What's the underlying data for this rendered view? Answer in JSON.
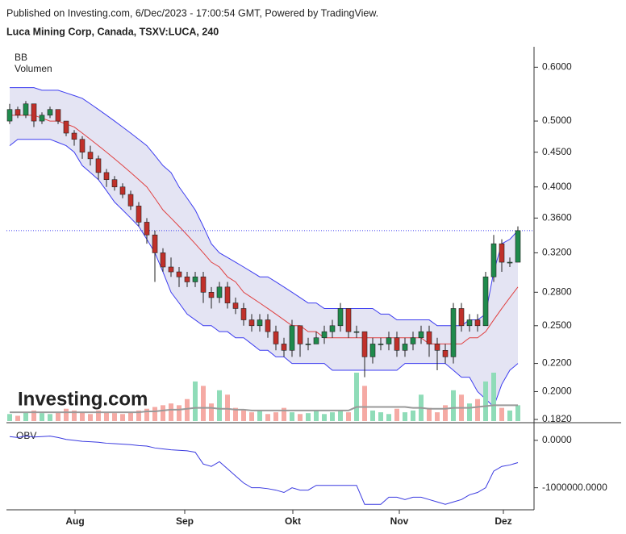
{
  "chart_data": {
    "type": "candlestick",
    "header": "Published on Investing.com, 6/Dec/2023 - 17:00:54 GMT, Powered by TradingView.",
    "title": "Luca Mining Corp, Canada, TSXV:LUCA, 240",
    "watermark": "Investing.com",
    "indicators": [
      "BB",
      "Volumen"
    ],
    "log_scale": true,
    "up_color": "#1f8a4c",
    "down_color": "#c0302a",
    "xlim": [
      -0.4,
      65
    ],
    "xticks": [
      {
        "value": 8.1,
        "label": "Aug"
      },
      {
        "value": 21.7,
        "label": "Sep"
      },
      {
        "value": 35.1,
        "label": "Okt"
      },
      {
        "value": 48.3,
        "label": "Nov"
      },
      {
        "value": 61.2,
        "label": "Dez"
      }
    ],
    "ylim": [
      0.181,
      0.643
    ],
    "yticks": [
      {
        "value": 0.6,
        "label": "0.6000"
      },
      {
        "value": 0.5,
        "label": "0.5000"
      },
      {
        "value": 0.45,
        "label": "0.4500"
      },
      {
        "value": 0.4,
        "label": "0.4000"
      },
      {
        "value": 0.36,
        "label": "0.3600"
      },
      {
        "value": 0.32,
        "label": "0.3200"
      },
      {
        "value": 0.28,
        "label": "0.2800"
      },
      {
        "value": 0.25,
        "label": "0.2500"
      },
      {
        "value": 0.22,
        "label": "0.2200"
      },
      {
        "value": 0.2,
        "label": "0.2000"
      },
      {
        "value": 0.182,
        "label": "0.1820"
      }
    ],
    "open": [
      0.5,
      0.52,
      0.51,
      0.53,
      0.5,
      0.51,
      0.52,
      0.5,
      0.48,
      0.47,
      0.45,
      0.44,
      0.42,
      0.41,
      0.4,
      0.39,
      0.375,
      0.355,
      0.34,
      0.32,
      0.305,
      0.3,
      0.295,
      0.29,
      0.295,
      0.28,
      0.275,
      0.285,
      0.27,
      0.265,
      0.255,
      0.25,
      0.255,
      0.245,
      0.235,
      0.23,
      0.25,
      0.235,
      0.235,
      0.24,
      0.245,
      0.25,
      0.265,
      0.245,
      0.245,
      0.225,
      0.235,
      0.235,
      0.24,
      0.23,
      0.235,
      0.24,
      0.245,
      0.235,
      0.23,
      0.225,
      0.265,
      0.25,
      0.255,
      0.25,
      0.295,
      0.33,
      0.31,
      0.31
    ],
    "high": [
      0.53,
      0.525,
      0.535,
      0.53,
      0.515,
      0.525,
      0.52,
      0.5,
      0.485,
      0.475,
      0.46,
      0.445,
      0.425,
      0.415,
      0.405,
      0.395,
      0.38,
      0.36,
      0.345,
      0.325,
      0.315,
      0.305,
      0.3,
      0.3,
      0.3,
      0.285,
      0.29,
      0.29,
      0.275,
      0.27,
      0.26,
      0.26,
      0.26,
      0.25,
      0.24,
      0.255,
      0.25,
      0.24,
      0.245,
      0.25,
      0.255,
      0.27,
      0.265,
      0.25,
      0.245,
      0.24,
      0.24,
      0.245,
      0.245,
      0.24,
      0.245,
      0.25,
      0.25,
      0.24,
      0.235,
      0.27,
      0.27,
      0.26,
      0.26,
      0.3,
      0.34,
      0.335,
      0.315,
      0.35
    ],
    "low": [
      0.495,
      0.505,
      0.505,
      0.49,
      0.495,
      0.505,
      0.495,
      0.475,
      0.46,
      0.44,
      0.43,
      0.41,
      0.4,
      0.395,
      0.385,
      0.37,
      0.35,
      0.33,
      0.29,
      0.3,
      0.295,
      0.285,
      0.285,
      0.285,
      0.27,
      0.265,
      0.27,
      0.265,
      0.26,
      0.25,
      0.245,
      0.245,
      0.24,
      0.23,
      0.225,
      0.225,
      0.225,
      0.23,
      0.235,
      0.235,
      0.24,
      0.245,
      0.24,
      0.24,
      0.21,
      0.22,
      0.23,
      0.23,
      0.225,
      0.225,
      0.23,
      0.235,
      0.225,
      0.215,
      0.22,
      0.22,
      0.245,
      0.245,
      0.245,
      0.25,
      0.29,
      0.3,
      0.305,
      0.31
    ],
    "close": [
      0.52,
      0.51,
      0.53,
      0.5,
      0.51,
      0.52,
      0.5,
      0.48,
      0.47,
      0.45,
      0.44,
      0.42,
      0.41,
      0.4,
      0.39,
      0.375,
      0.355,
      0.34,
      0.32,
      0.305,
      0.3,
      0.295,
      0.29,
      0.295,
      0.28,
      0.275,
      0.285,
      0.27,
      0.265,
      0.255,
      0.25,
      0.255,
      0.245,
      0.235,
      0.23,
      0.25,
      0.235,
      0.235,
      0.24,
      0.245,
      0.25,
      0.265,
      0.245,
      0.245,
      0.225,
      0.235,
      0.235,
      0.24,
      0.23,
      0.235,
      0.24,
      0.245,
      0.235,
      0.23,
      0.225,
      0.265,
      0.25,
      0.255,
      0.25,
      0.295,
      0.33,
      0.31,
      0.31,
      0.345
    ],
    "bollinger": {
      "upper": [
        0.56,
        0.56,
        0.56,
        0.56,
        0.555,
        0.555,
        0.555,
        0.55,
        0.545,
        0.54,
        0.53,
        0.52,
        0.51,
        0.5,
        0.49,
        0.48,
        0.47,
        0.46,
        0.445,
        0.43,
        0.42,
        0.4,
        0.385,
        0.37,
        0.35,
        0.33,
        0.32,
        0.315,
        0.31,
        0.305,
        0.3,
        0.295,
        0.295,
        0.29,
        0.285,
        0.28,
        0.275,
        0.27,
        0.27,
        0.265,
        0.265,
        0.265,
        0.265,
        0.265,
        0.265,
        0.265,
        0.26,
        0.26,
        0.255,
        0.255,
        0.255,
        0.255,
        0.255,
        0.25,
        0.25,
        0.25,
        0.25,
        0.255,
        0.255,
        0.26,
        0.3,
        0.33,
        0.335,
        0.345
      ],
      "middle": [
        0.51,
        0.51,
        0.51,
        0.51,
        0.505,
        0.5,
        0.5,
        0.495,
        0.49,
        0.48,
        0.47,
        0.46,
        0.45,
        0.44,
        0.43,
        0.42,
        0.41,
        0.4,
        0.385,
        0.37,
        0.36,
        0.35,
        0.34,
        0.33,
        0.32,
        0.31,
        0.305,
        0.295,
        0.29,
        0.28,
        0.275,
        0.27,
        0.265,
        0.26,
        0.255,
        0.25,
        0.25,
        0.245,
        0.245,
        0.24,
        0.24,
        0.24,
        0.24,
        0.24,
        0.24,
        0.24,
        0.24,
        0.24,
        0.24,
        0.24,
        0.24,
        0.24,
        0.235,
        0.235,
        0.235,
        0.235,
        0.235,
        0.24,
        0.24,
        0.245,
        0.255,
        0.265,
        0.275,
        0.285
      ],
      "lower": [
        0.46,
        0.47,
        0.47,
        0.47,
        0.47,
        0.47,
        0.465,
        0.46,
        0.45,
        0.43,
        0.42,
        0.41,
        0.395,
        0.38,
        0.37,
        0.36,
        0.35,
        0.335,
        0.32,
        0.3,
        0.28,
        0.27,
        0.26,
        0.255,
        0.25,
        0.25,
        0.245,
        0.245,
        0.24,
        0.24,
        0.235,
        0.23,
        0.23,
        0.225,
        0.225,
        0.22,
        0.22,
        0.22,
        0.22,
        0.22,
        0.215,
        0.215,
        0.215,
        0.215,
        0.215,
        0.215,
        0.215,
        0.215,
        0.215,
        0.22,
        0.22,
        0.22,
        0.22,
        0.22,
        0.22,
        0.215,
        0.21,
        0.21,
        0.2,
        0.195,
        0.19,
        0.205,
        0.215,
        0.22
      ]
    },
    "volume": {
      "up_color": "#8fdcb8",
      "down_color": "#f5aaa4",
      "ma_color": "#999999",
      "values": [
        8,
        6,
        10,
        12,
        9,
        8,
        10,
        14,
        12,
        10,
        8,
        12,
        10,
        9,
        8,
        10,
        12,
        14,
        16,
        18,
        20,
        18,
        25,
        45,
        40,
        20,
        35,
        30,
        15,
        12,
        10,
        12,
        8,
        10,
        15,
        10,
        8,
        9,
        12,
        8,
        10,
        12,
        10,
        55,
        40,
        12,
        10,
        8,
        14,
        10,
        12,
        30,
        15,
        10,
        18,
        35,
        30,
        20,
        25,
        45,
        55,
        15,
        12,
        18
      ],
      "ma": [
        10,
        10,
        10,
        10,
        10,
        10,
        10,
        10,
        10,
        10,
        10,
        10,
        10,
        10,
        10,
        10,
        10,
        11,
        11,
        12,
        13,
        13,
        14,
        15,
        15,
        15,
        14,
        14,
        13,
        13,
        12,
        12,
        12,
        12,
        12,
        12,
        12,
        12,
        12,
        12,
        12,
        12,
        12,
        16,
        16,
        16,
        16,
        16,
        16,
        16,
        15,
        15,
        14,
        14,
        14,
        15,
        15,
        15,
        16,
        17,
        18,
        18,
        18,
        18
      ]
    },
    "obv": {
      "name": "OBV",
      "color": "#3a3ae0",
      "ylim": [
        -1466000,
        271000
      ],
      "yticks": [
        {
          "value": 0,
          "label": "0.0000"
        },
        {
          "value": -1000000,
          "label": "-1000000.0000"
        }
      ],
      "values": [
        80000,
        60000,
        90000,
        70000,
        80000,
        90000,
        60000,
        20000,
        0,
        -20000,
        -30000,
        -40000,
        -60000,
        -70000,
        -80000,
        -90000,
        -110000,
        -120000,
        -160000,
        -180000,
        -200000,
        -210000,
        -220000,
        -250000,
        -500000,
        -550000,
        -450000,
        -600000,
        -750000,
        -900000,
        -1000000,
        -1000000,
        -1020000,
        -1050000,
        -1100000,
        -1000000,
        -1050000,
        -1050000,
        -950000,
        -950000,
        -950000,
        -950000,
        -950000,
        -950000,
        -1350000,
        -1350000,
        -1350000,
        -1200000,
        -1200000,
        -1250000,
        -1200000,
        -1200000,
        -1250000,
        -1300000,
        -1350000,
        -1300000,
        -1250000,
        -1150000,
        -1100000,
        -1000000,
        -650000,
        -550000,
        -520000,
        -470000
      ]
    }
  }
}
